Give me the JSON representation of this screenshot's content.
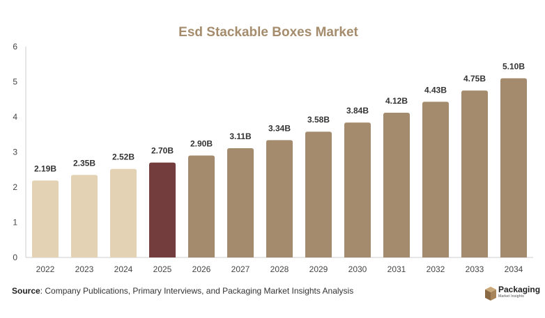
{
  "chart_data": {
    "type": "bar",
    "title": "Esd Stackable Boxes Market",
    "categories": [
      "2022",
      "2023",
      "2024",
      "2025",
      "2026",
      "2027",
      "2028",
      "2029",
      "2030",
      "2031",
      "2032",
      "2033",
      "2034"
    ],
    "values": [
      2.19,
      2.35,
      2.52,
      2.7,
      2.9,
      3.11,
      3.34,
      3.58,
      3.84,
      4.12,
      4.43,
      4.75,
      5.1
    ],
    "data_labels": [
      "2.19B",
      "2.35B",
      "2.52B",
      "2.70B",
      "2.90B",
      "3.11B",
      "3.34B",
      "3.58B",
      "3.84B",
      "4.12B",
      "4.43B",
      "4.75B",
      "5.10B"
    ],
    "xlabel": "",
    "ylabel": "",
    "ylim": [
      0,
      6
    ],
    "yticks": [
      "0",
      "1",
      "2",
      "3",
      "4",
      "5",
      "6"
    ],
    "grid": false,
    "legend": "none",
    "colors": {
      "title": "#a48c6c",
      "historical": "#e3d2b4",
      "current": "#733d3e",
      "forecast": "#a48b6d",
      "axis": "#cccccc"
    },
    "bar_groups": [
      "historical",
      "historical",
      "historical",
      "current",
      "forecast",
      "forecast",
      "forecast",
      "forecast",
      "forecast",
      "forecast",
      "forecast",
      "forecast",
      "forecast"
    ]
  },
  "footer": {
    "source_label": "Source",
    "source_text": ": Company Publications, Primary Interviews, and Packaging Market Insights Analysis"
  },
  "logo": {
    "icon": "box-icon",
    "name": "Packaging",
    "subtitle": "Market Insights"
  }
}
